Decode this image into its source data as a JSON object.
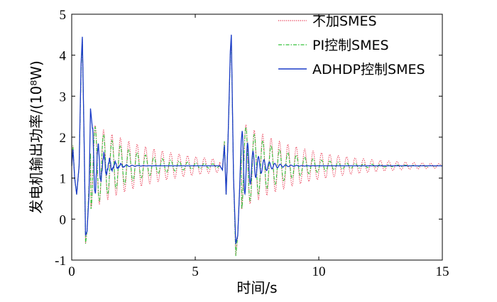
{
  "chart_data": {
    "type": "line",
    "xlabel": "时间/s",
    "ylabel": "发电机输出功率/(10⁸W)",
    "xlim": [
      0,
      15
    ],
    "ylim": [
      -1,
      5
    ],
    "xticks": [
      "0",
      "5",
      "10",
      "15"
    ],
    "yticks": [
      "-1",
      "0",
      "1",
      "2",
      "3",
      "4",
      "5"
    ],
    "grid": false,
    "legend_position": "top-right",
    "series": [
      {
        "name": "不加SMES",
        "color": "#e8304a",
        "style": "dotted",
        "model": {
          "pre": 1.3,
          "events": [
            {
              "t0": 0.0,
              "steps": [
                [
                  0.0,
                  1.3
                ],
                [
                  0.05,
                  1.8
                ],
                [
                  0.12,
                  1.0
                ],
                [
                  0.2,
                  0.6
                ],
                [
                  0.3,
                  1.3
                ],
                [
                  0.38,
                  3.6
                ],
                [
                  0.43,
                  4.4
                ],
                [
                  0.5,
                  2.0
                ],
                [
                  0.56,
                  -0.6
                ],
                [
                  0.62,
                  -0.3
                ],
                [
                  0.7,
                  0.8
                ],
                [
                  0.76,
                  1.6
                ]
              ],
              "tail": {
                "start": 0.78,
                "amp": -1.05,
                "period": 0.34,
                "tau": 2.7,
                "end": 6.0
              }
            },
            {
              "t0": 6.0,
              "steps": [
                [
                  0.0,
                  1.3
                ],
                [
                  0.1,
                  1.2
                ],
                [
                  0.18,
                  1.9
                ],
                [
                  0.25,
                  0.6
                ],
                [
                  0.33,
                  2.0
                ],
                [
                  0.42,
                  4.0
                ],
                [
                  0.46,
                  4.4
                ],
                [
                  0.55,
                  1.0
                ],
                [
                  0.64,
                  -0.9
                ],
                [
                  0.72,
                  -0.4
                ],
                [
                  0.8,
                  0.8
                ],
                [
                  0.86,
                  1.7
                ]
              ],
              "tail": {
                "start": 0.88,
                "amp": -1.05,
                "period": 0.34,
                "tau": 2.7,
                "end": 15.0
              }
            }
          ]
        }
      },
      {
        "name": "PI控制SMES",
        "color": "#34c23a",
        "style": "dashdot",
        "model": {
          "pre": 1.3,
          "events": [
            {
              "t0": 0.0,
              "steps": [
                [
                  0.0,
                  1.3
                ],
                [
                  0.05,
                  1.8
                ],
                [
                  0.12,
                  1.0
                ],
                [
                  0.2,
                  0.6
                ],
                [
                  0.3,
                  1.3
                ],
                [
                  0.38,
                  3.6
                ],
                [
                  0.43,
                  4.4
                ],
                [
                  0.5,
                  2.0
                ],
                [
                  0.56,
                  -0.6
                ],
                [
                  0.62,
                  -0.3
                ],
                [
                  0.7,
                  0.8
                ],
                [
                  0.76,
                  1.6
                ]
              ],
              "tail": {
                "start": 0.78,
                "amp": -1.05,
                "period": 0.34,
                "tau": 1.6,
                "end": 6.0
              }
            },
            {
              "t0": 6.0,
              "steps": [
                [
                  0.0,
                  1.3
                ],
                [
                  0.1,
                  1.2
                ],
                [
                  0.18,
                  1.9
                ],
                [
                  0.25,
                  0.6
                ],
                [
                  0.33,
                  2.0
                ],
                [
                  0.42,
                  4.0
                ],
                [
                  0.46,
                  4.4
                ],
                [
                  0.55,
                  1.0
                ],
                [
                  0.64,
                  -0.9
                ],
                [
                  0.72,
                  -0.4
                ],
                [
                  0.8,
                  0.8
                ],
                [
                  0.86,
                  1.7
                ]
              ],
              "tail": {
                "start": 0.88,
                "amp": -1.05,
                "period": 0.34,
                "tau": 1.6,
                "end": 15.0
              }
            }
          ]
        }
      },
      {
        "name": "ADHDP控制SMES",
        "color": "#1a3cc8",
        "style": "solid",
        "model": {
          "pre": 1.3,
          "events": [
            {
              "t0": 0.0,
              "steps": [
                [
                  0.0,
                  1.3
                ],
                [
                  0.05,
                  1.7
                ],
                [
                  0.12,
                  1.0
                ],
                [
                  0.2,
                  0.6
                ],
                [
                  0.3,
                  1.3
                ],
                [
                  0.38,
                  3.8
                ],
                [
                  0.43,
                  4.45
                ],
                [
                  0.5,
                  2.0
                ],
                [
                  0.56,
                  -0.4
                ],
                [
                  0.62,
                  -0.3
                ],
                [
                  0.7,
                  0.6
                ],
                [
                  0.76,
                  2.7
                ]
              ],
              "tail": {
                "start": 0.84,
                "amp": 0.9,
                "period": 0.23,
                "tau": 0.38,
                "end": 6.0,
                "noise": 0.12
              }
            },
            {
              "t0": 6.0,
              "steps": [
                [
                  0.0,
                  1.3
                ],
                [
                  0.1,
                  1.2
                ],
                [
                  0.18,
                  1.8
                ],
                [
                  0.25,
                  0.6
                ],
                [
                  0.33,
                  2.0
                ],
                [
                  0.42,
                  4.1
                ],
                [
                  0.46,
                  4.5
                ],
                [
                  0.55,
                  1.0
                ],
                [
                  0.64,
                  -0.6
                ],
                [
                  0.72,
                  -0.4
                ],
                [
                  0.8,
                  0.8
                ],
                [
                  0.86,
                  1.9
                ]
              ],
              "tail": {
                "start": 0.9,
                "amp": 0.85,
                "period": 0.22,
                "tau": 0.5,
                "end": 15.0
              }
            }
          ]
        }
      }
    ]
  }
}
